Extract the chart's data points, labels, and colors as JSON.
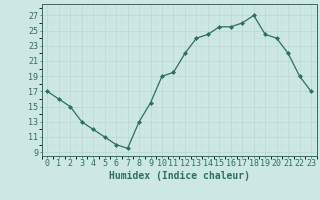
{
  "x": [
    0,
    1,
    2,
    3,
    4,
    5,
    6,
    7,
    8,
    9,
    10,
    11,
    12,
    13,
    14,
    15,
    16,
    17,
    18,
    19,
    20,
    21,
    22,
    23
  ],
  "y": [
    17,
    16,
    15,
    13,
    12,
    11,
    10,
    9.5,
    13,
    15.5,
    19,
    19.5,
    22,
    24,
    24.5,
    25.5,
    25.5,
    26,
    27,
    24.5,
    24,
    22,
    19,
    17
  ],
  "line_color": "#2e6e65",
  "marker_color": "#2e6e65",
  "bg_color": "#cde8e4",
  "xlabel": "Humidex (Indice chaleur)",
  "ylabel_ticks": [
    9,
    11,
    13,
    15,
    17,
    19,
    21,
    23,
    25,
    27
  ],
  "ylim": [
    8.5,
    28.5
  ],
  "xlim": [
    -0.5,
    23.5
  ],
  "xlabel_fontsize": 7,
  "tick_fontsize": 6
}
